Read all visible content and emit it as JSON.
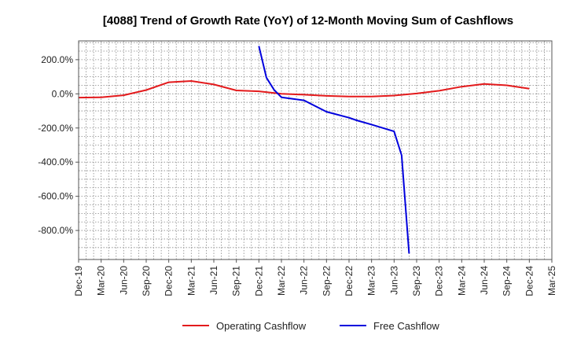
{
  "chart_data": {
    "type": "line",
    "title": "[4088]  Trend of Growth Rate (YoY) of 12-Month Moving Sum of Cashflows",
    "xlabel": "",
    "ylabel": "",
    "x_ticks": [
      "Dec-19",
      "Mar-20",
      "Jun-20",
      "Sep-20",
      "Dec-20",
      "Mar-21",
      "Jun-21",
      "Sep-21",
      "Dec-21",
      "Mar-22",
      "Jun-22",
      "Sep-22",
      "Dec-22",
      "Mar-23",
      "Jun-23",
      "Sep-23",
      "Dec-23",
      "Mar-24",
      "Jun-24",
      "Sep-24",
      "Dec-24",
      "Mar-25"
    ],
    "y_ticks": [
      200,
      0,
      -200,
      -400,
      -600,
      -800
    ],
    "y_tick_labels": [
      "200.0%",
      "0.0%",
      "-200.0%",
      "-400.0%",
      "-600.0%",
      "-800.0%"
    ],
    "ylim": [
      -970,
      310
    ],
    "grid": true,
    "legend_position": "bottom",
    "series": [
      {
        "name": "Operating Cashflow",
        "color": "#e31a1c",
        "points": [
          [
            "Dec-19",
            -22
          ],
          [
            "Mar-20",
            -20
          ],
          [
            "Jun-20",
            -8
          ],
          [
            "Sep-20",
            22
          ],
          [
            "Dec-20",
            68
          ],
          [
            "Mar-21",
            75
          ],
          [
            "Jun-21",
            55
          ],
          [
            "Sep-21",
            20
          ],
          [
            "Dec-21",
            15
          ],
          [
            "Mar-22",
            0
          ],
          [
            "Jun-22",
            -5
          ],
          [
            "Sep-22",
            -12
          ],
          [
            "Dec-22",
            -16
          ],
          [
            "Mar-23",
            -16
          ],
          [
            "Jun-23",
            -10
          ],
          [
            "Sep-23",
            2
          ],
          [
            "Dec-23",
            18
          ],
          [
            "Mar-24",
            42
          ],
          [
            "Jun-24",
            58
          ],
          [
            "Sep-24",
            50
          ],
          [
            "Dec-24",
            30
          ]
        ]
      },
      {
        "name": "Free Cashflow",
        "color": "#0000dd",
        "points": [
          [
            "Dec-21",
            280
          ],
          [
            "Jan-22",
            95
          ],
          [
            "Feb-22",
            25
          ],
          [
            "Mar-22",
            -20
          ],
          [
            "Jun-22",
            -38
          ],
          [
            "Sep-22",
            -105
          ],
          [
            "Dec-22",
            -140
          ],
          [
            "Jan-23",
            -155
          ],
          [
            "Mar-23",
            -180
          ],
          [
            "Jun-23",
            -220
          ],
          [
            "Jul-23",
            -360
          ],
          [
            "Aug-23",
            -935
          ]
        ]
      }
    ]
  }
}
